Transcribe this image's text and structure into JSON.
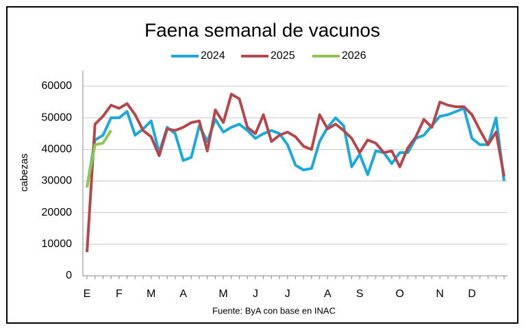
{
  "chart_data": {
    "type": "line",
    "title": "Faena semanal de vacunos",
    "y_label": "cabezas",
    "note": "Fuente: ByA con base en INAC",
    "categories": [
      "E",
      null,
      null,
      null,
      "F",
      null,
      null,
      null,
      "M",
      null,
      null,
      null,
      "A",
      null,
      null,
      null,
      null,
      "M",
      null,
      null,
      null,
      "J",
      null,
      null,
      null,
      "J",
      null,
      null,
      null,
      null,
      "A",
      null,
      null,
      null,
      "S",
      null,
      null,
      null,
      null,
      "O",
      null,
      null,
      null,
      null,
      "N",
      null,
      null,
      null,
      "D",
      null,
      null,
      null,
      null
    ],
    "series": [
      {
        "name": "2024",
        "color": "#1aa9dd",
        "values": [
          28000,
          43000,
          44500,
          50000,
          50000,
          52000,
          44500,
          46500,
          49000,
          39000,
          47000,
          45000,
          36500,
          37500,
          47500,
          42500,
          49500,
          45500,
          47000,
          48000,
          46000,
          43500,
          45000,
          46000,
          45000,
          41500,
          35000,
          33500,
          34000,
          42500,
          47000,
          50000,
          47500,
          34500,
          38500,
          32000,
          39500,
          39000,
          35500,
          39000,
          39000,
          43500,
          44500,
          47500,
          50500,
          51000,
          52000,
          53000,
          43500,
          41500,
          41500,
          50000,
          30000
        ]
      },
      {
        "name": "2025",
        "color": "#b5474a",
        "values": [
          7500,
          48000,
          50500,
          54000,
          53000,
          54500,
          51000,
          46000,
          44000,
          38000,
          46500,
          46000,
          47000,
          48500,
          49000,
          39500,
          52500,
          48500,
          57500,
          56000,
          47000,
          45000,
          51000,
          42500,
          44500,
          45500,
          44000,
          41000,
          40000,
          51000,
          46500,
          48000,
          46000,
          43500,
          39000,
          43000,
          42000,
          39000,
          39500,
          34500,
          40500,
          44000,
          49500,
          47000,
          55000,
          54000,
          53500,
          53500,
          51000,
          46000,
          41500,
          45500,
          31500
        ]
      },
      {
        "name": "2026",
        "color": "#8cc752",
        "values": [
          28000,
          41500,
          42000,
          46000,
          null,
          null,
          null,
          null,
          null,
          null,
          null,
          null,
          null,
          null,
          null,
          null,
          null,
          null,
          null,
          null,
          null,
          null,
          null,
          null,
          null,
          null,
          null,
          null,
          null,
          null,
          null,
          null,
          null,
          null,
          null,
          null,
          null,
          null,
          null,
          null,
          null,
          null,
          null,
          null,
          null,
          null,
          null,
          null,
          null,
          null,
          null,
          null,
          null
        ]
      }
    ],
    "ylim": [
      0,
      60000
    ],
    "yticks": [
      0,
      10000,
      20000,
      30000,
      40000,
      50000,
      60000
    ],
    "grid": true
  }
}
